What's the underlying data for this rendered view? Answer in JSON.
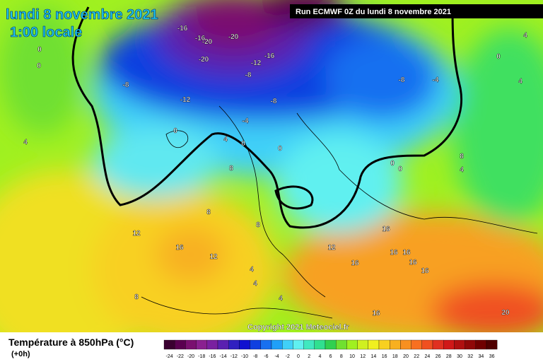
{
  "header": {
    "title": "lundi 8 novembre 2021",
    "time": "1:00 locale",
    "run": "Run ECMWF 0Z du lundi 8 novembre 2021",
    "copyright": "Copyright 2021 Meteociel.fr"
  },
  "legend": {
    "title": "Température à 850hPa (°C)",
    "lead": "(+0h)",
    "ticks": [
      -24,
      -22,
      -20,
      -18,
      -16,
      -14,
      -12,
      -10,
      -8,
      -6,
      -4,
      -2,
      0,
      2,
      4,
      6,
      8,
      10,
      12,
      14,
      16,
      18,
      20,
      22,
      24,
      26,
      28,
      30,
      32,
      34,
      36
    ],
    "colors": [
      "#3a0030",
      "#5a0050",
      "#7a1070",
      "#8a2090",
      "#7a20a0",
      "#5a20b0",
      "#3020c0",
      "#1010d0",
      "#1040e0",
      "#1870f0",
      "#20a0f8",
      "#40d0f8",
      "#60f0f0",
      "#40e8c0",
      "#30e090",
      "#30d050",
      "#70e030",
      "#a0f020",
      "#d0f020",
      "#f0f020",
      "#f8d020",
      "#f8b020",
      "#f89020",
      "#f87020",
      "#f05020",
      "#e03020",
      "#d01818",
      "#b01010",
      "#900808",
      "#700000",
      "#500000"
    ]
  },
  "map": {
    "isotherm_labels": [
      -16,
      -16,
      -20,
      -20,
      -20,
      -12,
      -16,
      -8,
      -8,
      -12,
      -8,
      -8,
      -4,
      -4,
      0,
      0,
      4,
      0,
      0,
      0,
      8,
      8,
      4,
      0,
      0,
      4,
      4,
      0,
      4,
      8,
      12,
      16,
      12,
      8,
      12,
      16,
      16,
      16,
      16,
      16,
      16,
      4,
      4,
      4,
      8,
      16,
      20,
      -20
    ]
  }
}
